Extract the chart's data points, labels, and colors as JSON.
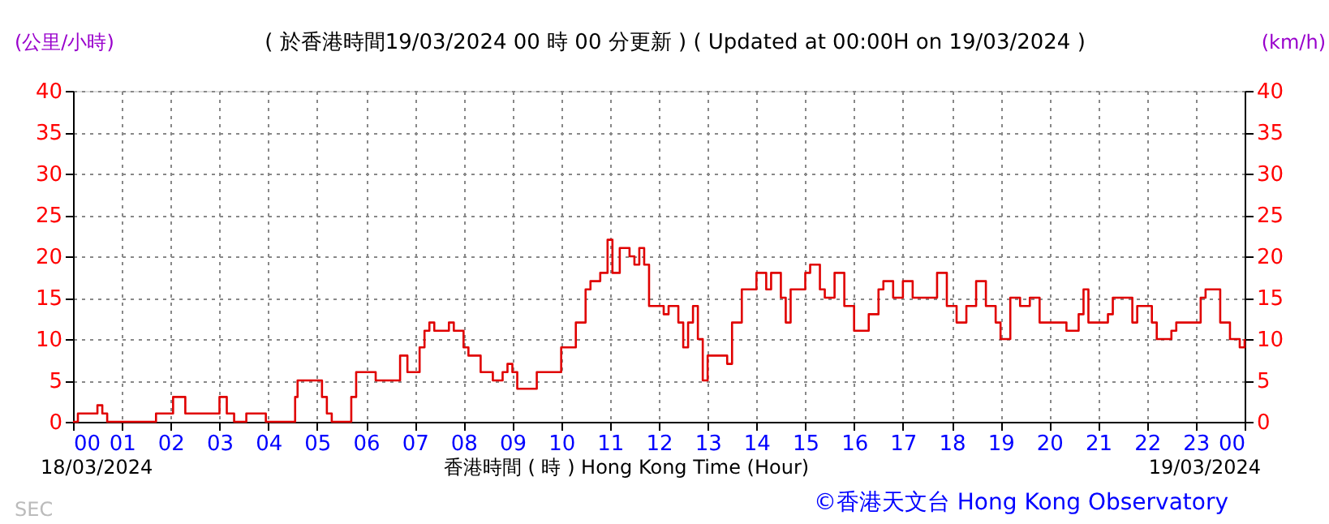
{
  "chart_data": {
    "type": "step",
    "title": "( 於香港時間19/03/2024 00 時 00 分更新 ) ( Updated at 00:00H on 19/03/2024 )",
    "xlabel": "香港時間 ( 時 ) Hong Kong Time (Hour)",
    "ylabel": "(公里/小時)",
    "y2label": "(km/h)",
    "annotations": [
      "18/03/2024",
      "19/03/2024",
      "©香港天文台 Hong Kong Observatory",
      "SEC"
    ],
    "x": [
      0,
      0.1,
      0.45,
      0.5,
      0.6,
      0.7,
      1.6,
      1.7,
      2.0,
      2.05,
      2.2,
      2.3,
      2.9,
      3.0,
      3.15,
      3.3,
      3.5,
      3.55,
      3.9,
      3.95,
      4.4,
      4.55,
      4.6,
      5.0,
      5.1,
      5.2,
      5.3,
      5.55,
      5.7,
      5.8,
      6.1,
      6.2,
      6.6,
      6.7,
      6.8,
      6.85,
      7.0,
      7.1,
      7.2,
      7.3,
      7.4,
      7.6,
      7.7,
      7.8,
      8.0,
      8.1,
      8.3,
      8.35,
      8.6,
      8.8,
      8.9,
      9.0,
      9.1,
      9.4,
      9.5,
      10.0,
      10.3,
      10.5,
      10.6,
      10.8,
      10.95,
      11.05,
      11.2,
      11.4,
      11.5,
      11.6,
      11.7,
      11.8,
      12.0,
      12.1,
      12.2,
      12.4,
      12.5,
      12.6,
      12.7,
      12.8,
      12.9,
      13.0,
      13.2,
      13.4,
      13.5,
      13.7,
      13.9,
      14.0,
      14.2,
      14.3,
      14.5,
      14.6,
      14.7,
      15.0,
      15.1,
      15.3,
      15.4,
      15.6,
      15.8,
      16.0,
      16.3,
      16.5,
      16.6,
      16.8,
      17.0,
      17.2,
      17.6,
      17.7,
      17.9,
      18.1,
      18.3,
      18.5,
      18.7,
      18.9,
      19.0,
      19.2,
      19.4,
      19.6,
      19.8,
      20.3,
      20.35,
      20.6,
      20.7,
      20.8,
      21.2,
      21.3,
      21.6,
      21.7,
      21.8,
      22.0,
      22.1,
      22.2,
      22.5,
      22.6,
      23.0,
      23.1,
      23.2,
      23.5,
      23.7,
      23.9,
      24
    ],
    "series": [
      {
        "color": "#e00000",
        "values": [
          0,
          1,
          1,
          2,
          1,
          0,
          0,
          1,
          1,
          3,
          3,
          1,
          1,
          3,
          1,
          0,
          0,
          1,
          1,
          0,
          0,
          3,
          5,
          5,
          3,
          1,
          0,
          0,
          3,
          6,
          6,
          5,
          5,
          8,
          8,
          6,
          6,
          9,
          11,
          12,
          11,
          11,
          12,
          11,
          9,
          8,
          8,
          6,
          5,
          6,
          7,
          6,
          4,
          4,
          6,
          9,
          12,
          16,
          17,
          18,
          22,
          18,
          21,
          20,
          19,
          21,
          19,
          14,
          14,
          13,
          14,
          12,
          9,
          12,
          14,
          10,
          5,
          8,
          8,
          7,
          12,
          16,
          16,
          18,
          16,
          18,
          15,
          12,
          16,
          18,
          19,
          16,
          15,
          18,
          14,
          11,
          13,
          16,
          17,
          15,
          17,
          15,
          15,
          18,
          14,
          12,
          14,
          17,
          14,
          12,
          10,
          15,
          14,
          15,
          12,
          12,
          11,
          13,
          16,
          12,
          13,
          15,
          15,
          12,
          14,
          14,
          12,
          10,
          11,
          12,
          12,
          15,
          16,
          12,
          10,
          9,
          10
        ]
      }
    ],
    "xlim": [
      0,
      24
    ],
    "ylim": [
      0,
      40
    ],
    "y2lim": [
      0,
      40
    ],
    "xticks": [
      {
        "value": 0,
        "label": "00"
      },
      {
        "value": 1,
        "label": "01"
      },
      {
        "value": 2,
        "label": "02"
      },
      {
        "value": 3,
        "label": "03"
      },
      {
        "value": 4,
        "label": "04"
      },
      {
        "value": 5,
        "label": "05"
      },
      {
        "value": 6,
        "label": "06"
      },
      {
        "value": 7,
        "label": "07"
      },
      {
        "value": 8,
        "label": "08"
      },
      {
        "value": 9,
        "label": "09"
      },
      {
        "value": 10,
        "label": "10"
      },
      {
        "value": 11,
        "label": "11"
      },
      {
        "value": 12,
        "label": "12"
      },
      {
        "value": 13,
        "label": "13"
      },
      {
        "value": 14,
        "label": "14"
      },
      {
        "value": 15,
        "label": "15"
      },
      {
        "value": 16,
        "label": "16"
      },
      {
        "value": 17,
        "label": "17"
      },
      {
        "value": 18,
        "label": "18"
      },
      {
        "value": 19,
        "label": "19"
      },
      {
        "value": 20,
        "label": "20"
      },
      {
        "value": 21,
        "label": "21"
      },
      {
        "value": 22,
        "label": "22"
      },
      {
        "value": 23,
        "label": "23"
      },
      {
        "value": 24,
        "label": "00"
      }
    ],
    "yticks": [
      0,
      5,
      10,
      15,
      20,
      25,
      30,
      35,
      40
    ],
    "y2ticks": [
      0,
      5,
      10,
      15,
      20,
      25,
      30,
      35,
      40
    ],
    "grid": true
  }
}
